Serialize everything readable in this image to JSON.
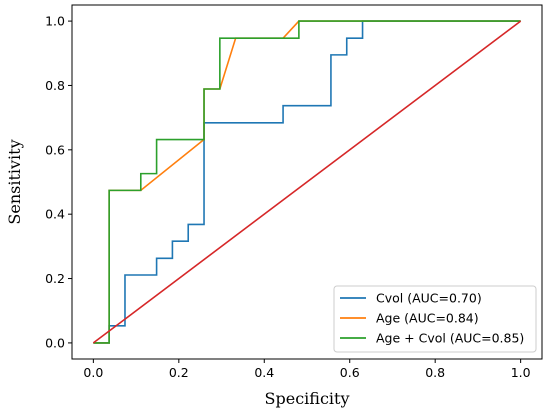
{
  "chart_data": {
    "type": "line",
    "title": "",
    "xlabel": "Specificity",
    "ylabel": "Sensitivity",
    "xlim": [
      -0.05,
      1.05
    ],
    "ylim": [
      -0.05,
      1.05
    ],
    "xticks": [
      0.0,
      0.2,
      0.4,
      0.6,
      0.8,
      1.0
    ],
    "yticks": [
      0.0,
      0.2,
      0.4,
      0.6,
      0.8,
      1.0
    ],
    "xtick_labels": [
      "0.0",
      "0.2",
      "0.4",
      "0.6",
      "0.8",
      "1.0"
    ],
    "ytick_labels": [
      "0.0",
      "0.2",
      "0.4",
      "0.6",
      "0.8",
      "1.0"
    ],
    "grid": false,
    "legend_position": "bottom-right",
    "series": [
      {
        "name": "Cvol (AUC=0.70)",
        "color": "#1f77b4",
        "x": [
          0.0,
          0.037,
          0.037,
          0.074,
          0.074,
          0.148,
          0.148,
          0.185,
          0.185,
          0.222,
          0.222,
          0.259,
          0.259,
          0.444,
          0.444,
          0.556,
          0.556,
          0.593,
          0.593,
          0.63,
          0.63,
          1.0
        ],
        "y": [
          0.0,
          0.0,
          0.053,
          0.053,
          0.211,
          0.211,
          0.263,
          0.263,
          0.316,
          0.316,
          0.368,
          0.368,
          0.684,
          0.684,
          0.737,
          0.737,
          0.895,
          0.895,
          0.947,
          0.947,
          1.0,
          1.0
        ]
      },
      {
        "name": "Age (AUC=0.84)",
        "color": "#ff7f0e",
        "x": [
          0.0,
          0.037,
          0.037,
          0.111,
          0.259,
          0.259,
          0.296,
          0.333,
          0.444,
          0.481,
          1.0
        ],
        "y": [
          0.0,
          0.0,
          0.474,
          0.474,
          0.632,
          0.789,
          0.789,
          0.947,
          0.947,
          1.0,
          1.0
        ]
      },
      {
        "name": "Age + Cvol (AUC=0.85)",
        "color": "#2ca02c",
        "x": [
          0.0,
          0.037,
          0.037,
          0.111,
          0.111,
          0.148,
          0.148,
          0.259,
          0.259,
          0.296,
          0.296,
          0.481,
          0.481,
          1.0
        ],
        "y": [
          0.0,
          0.0,
          0.474,
          0.474,
          0.526,
          0.526,
          0.632,
          0.632,
          0.789,
          0.789,
          0.947,
          0.947,
          1.0,
          1.0
        ]
      },
      {
        "name": "",
        "color": "#d62728",
        "x": [
          0.0,
          1.0
        ],
        "y": [
          0.0,
          1.0
        ]
      }
    ]
  }
}
